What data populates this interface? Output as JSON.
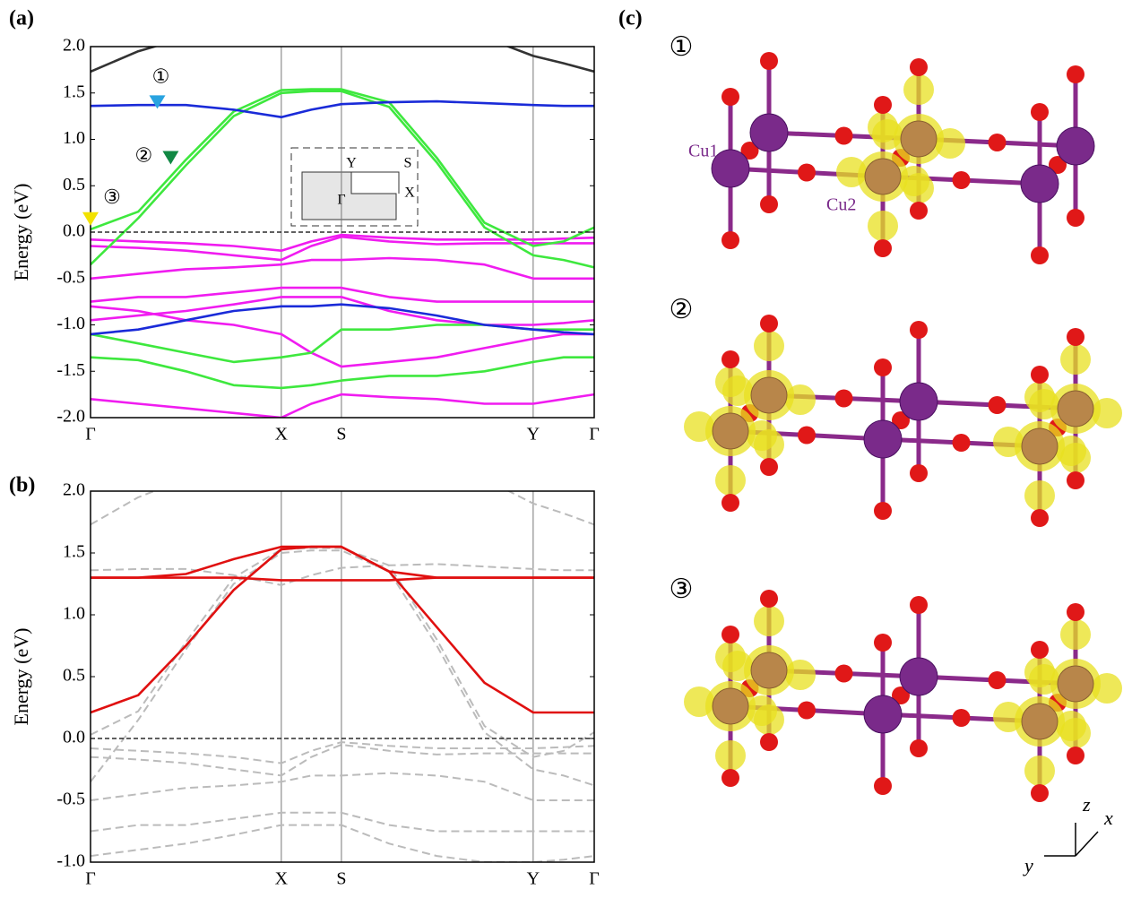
{
  "chart_data": [
    {
      "type": "line",
      "panel_label": "(a)",
      "ylabel": "Energy (eV)",
      "x": [
        0,
        0.25,
        0.5,
        0.75,
        1,
        1.157,
        1.315,
        1.565,
        1.815,
        2.065,
        2.32,
        2.48,
        2.64
      ],
      "xlim": [
        0,
        2.64
      ],
      "xticks": [
        {
          "value": 0,
          "label": "Γ"
        },
        {
          "value": 1,
          "label": "X"
        },
        {
          "value": 1.315,
          "label": "S"
        },
        {
          "value": 2.32,
          "label": "Y"
        },
        {
          "value": 2.64,
          "label": "Γ"
        }
      ],
      "ylim": [
        -2,
        2
      ],
      "yticks": [
        {
          "value": -2,
          "label": "-2.0"
        },
        -1.5,
        {
          "value": -1,
          "label": "-1.0"
        },
        -0.5,
        {
          "value": 0,
          "label": "0.0"
        },
        0.5,
        {
          "value": 1,
          "label": "1.0"
        },
        1.5,
        {
          "value": 2,
          "label": "2.0"
        }
      ],
      "zero_line": 0,
      "series": [
        {
          "color": "#333333",
          "values": [
            1.73,
            1.95,
            2.1,
            null,
            null,
            null,
            null,
            null,
            null,
            2.1,
            1.9,
            1.82,
            1.73
          ]
        },
        {
          "color": "#f01cf0",
          "values": [
            -0.08,
            -0.1,
            -0.12,
            -0.15,
            -0.2,
            -0.1,
            -0.03,
            -0.06,
            -0.08,
            -0.08,
            -0.08,
            -0.07,
            -0.06
          ]
        },
        {
          "color": "#f01cf0",
          "values": [
            -0.15,
            -0.17,
            -0.2,
            -0.25,
            -0.3,
            -0.15,
            -0.05,
            -0.1,
            -0.13,
            -0.12,
            -0.12,
            -0.12,
            -0.12
          ]
        },
        {
          "color": "#f01cf0",
          "values": [
            -0.5,
            -0.45,
            -0.4,
            -0.38,
            -0.35,
            -0.3,
            -0.3,
            -0.28,
            -0.3,
            -0.35,
            -0.5,
            -0.5,
            -0.5
          ]
        },
        {
          "color": "#f01cf0",
          "values": [
            -0.75,
            -0.7,
            -0.7,
            -0.65,
            -0.6,
            -0.6,
            -0.6,
            -0.7,
            -0.75,
            -0.75,
            -0.75,
            -0.75,
            -0.75
          ]
        },
        {
          "color": "#f01cf0",
          "values": [
            -0.95,
            -0.9,
            -0.85,
            -0.78,
            -0.7,
            -0.7,
            -0.7,
            -0.85,
            -0.95,
            -1.0,
            -1.0,
            -0.98,
            -0.95
          ]
        },
        {
          "color": "#f01cf0",
          "values": [
            -0.8,
            -0.85,
            -0.95,
            -1.0,
            -1.1,
            -1.3,
            -1.45,
            -1.4,
            -1.35,
            -1.25,
            -1.15,
            -1.1,
            -1.1
          ]
        },
        {
          "color": "#f01cf0",
          "values": [
            -1.8,
            -1.85,
            -1.9,
            -1.95,
            -2.0,
            -1.85,
            -1.75,
            -1.78,
            -1.8,
            -1.85,
            -1.85,
            -1.8,
            -1.75
          ]
        },
        {
          "color": "#3ee83e",
          "values": [
            -1.35,
            -1.38,
            -1.5,
            -1.65,
            -1.68,
            -1.65,
            -1.6,
            -1.55,
            -1.55,
            -1.5,
            -1.4,
            -1.35,
            -1.35
          ]
        },
        {
          "color": "#3ee83e",
          "values": [
            -1.1,
            -1.2,
            -1.3,
            -1.4,
            -1.35,
            -1.3,
            -1.05,
            -1.05,
            -1.0,
            -1.0,
            -1.05,
            -1.05,
            -1.05
          ]
        },
        {
          "color": "#1a2bd8",
          "values": [
            -1.1,
            -1.05,
            -0.95,
            -0.85,
            -0.8,
            -0.8,
            -0.78,
            -0.82,
            -0.9,
            -1.0,
            -1.05,
            -1.08,
            -1.1
          ]
        },
        {
          "color": "#3ee83e",
          "values": [
            0.03,
            0.22,
            0.78,
            1.3,
            1.53,
            1.54,
            1.54,
            1.4,
            0.8,
            0.1,
            -0.15,
            -0.1,
            0.05
          ]
        },
        {
          "color": "#3ee83e",
          "values": [
            -0.35,
            0.15,
            0.72,
            1.25,
            1.5,
            1.52,
            1.52,
            1.35,
            0.75,
            0.05,
            -0.25,
            -0.3,
            -0.38
          ]
        },
        {
          "color": "#1a2bd8",
          "values": [
            1.36,
            1.37,
            1.37,
            1.32,
            1.24,
            1.32,
            1.38,
            1.4,
            1.41,
            1.39,
            1.37,
            1.36,
            1.36
          ]
        }
      ],
      "annotations": [
        {
          "text": "①",
          "x": 0.35,
          "y": 1.33,
          "color": "#29a3e0"
        },
        {
          "text": "②",
          "x": 0.42,
          "y": 0.73,
          "color": "#118844"
        },
        {
          "text": "③",
          "x": 0,
          "y": 0.07,
          "color": "#f2e200"
        }
      ],
      "inset_labels": [
        "Y",
        "S",
        "X",
        "Γ"
      ]
    },
    {
      "type": "line",
      "panel_label": "(b)",
      "ylabel": "Energy (eV)",
      "x": [
        0,
        0.25,
        0.5,
        0.75,
        1,
        1.157,
        1.315,
        1.565,
        1.815,
        2.065,
        2.32,
        2.48,
        2.64
      ],
      "xlim": [
        0,
        2.64
      ],
      "xticks": [
        {
          "value": 0,
          "label": "Γ"
        },
        {
          "value": 1,
          "label": "X"
        },
        {
          "value": 1.315,
          "label": "S"
        },
        {
          "value": 2.32,
          "label": "Y"
        },
        {
          "value": 2.64,
          "label": "Γ"
        }
      ],
      "ylim": [
        -1,
        2
      ],
      "yticks": [
        {
          "value": -1,
          "label": "-1.0"
        },
        -0.5,
        {
          "value": 0,
          "label": "0.0"
        },
        0.5,
        {
          "value": 1,
          "label": "1.0"
        },
        1.5,
        {
          "value": 2,
          "label": "2.0"
        }
      ],
      "zero_line": 0,
      "series": [
        {
          "color": "#bbbbbb",
          "dashed": true,
          "values": [
            1.73,
            1.95,
            2.1,
            null,
            null,
            null,
            null,
            null,
            null,
            2.1,
            1.9,
            1.82,
            1.73
          ]
        },
        {
          "color": "#bbbbbb",
          "dashed": true,
          "values": [
            -0.08,
            -0.1,
            -0.12,
            -0.15,
            -0.2,
            -0.1,
            -0.03,
            -0.06,
            -0.08,
            -0.08,
            -0.08,
            -0.07,
            -0.06
          ]
        },
        {
          "color": "#bbbbbb",
          "dashed": true,
          "values": [
            -0.15,
            -0.17,
            -0.2,
            -0.25,
            -0.3,
            -0.15,
            -0.05,
            -0.1,
            -0.13,
            -0.12,
            -0.12,
            -0.12,
            -0.12
          ]
        },
        {
          "color": "#bbbbbb",
          "dashed": true,
          "values": [
            -0.5,
            -0.45,
            -0.4,
            -0.38,
            -0.35,
            -0.3,
            -0.3,
            -0.28,
            -0.3,
            -0.35,
            -0.5,
            -0.5,
            -0.5
          ]
        },
        {
          "color": "#bbbbbb",
          "dashed": true,
          "values": [
            -0.75,
            -0.7,
            -0.7,
            -0.65,
            -0.6,
            -0.6,
            -0.6,
            -0.7,
            -0.75,
            -0.75,
            -0.75,
            -0.75,
            -0.75
          ]
        },
        {
          "color": "#bbbbbb",
          "dashed": true,
          "values": [
            -0.95,
            -0.9,
            -0.85,
            -0.78,
            -0.7,
            -0.7,
            -0.7,
            -0.85,
            -0.95,
            -1.0,
            -1.0,
            -0.98,
            -0.95
          ]
        },
        {
          "color": "#bbbbbb",
          "dashed": true,
          "values": [
            0.03,
            0.22,
            0.78,
            1.3,
            1.53,
            1.54,
            1.54,
            1.4,
            0.8,
            0.1,
            -0.15,
            -0.1,
            0.05
          ]
        },
        {
          "color": "#bbbbbb",
          "dashed": true,
          "values": [
            -0.35,
            0.15,
            0.72,
            1.25,
            1.5,
            1.52,
            1.52,
            1.35,
            0.75,
            0.05,
            -0.25,
            -0.3,
            -0.38
          ]
        },
        {
          "color": "#bbbbbb",
          "dashed": true,
          "values": [
            1.36,
            1.37,
            1.37,
            1.32,
            1.24,
            1.32,
            1.38,
            1.4,
            1.41,
            1.39,
            1.37,
            1.36,
            1.36
          ]
        },
        {
          "color": "#e01010",
          "values": [
            0.21,
            0.35,
            0.75,
            1.2,
            1.53,
            1.55,
            1.55,
            1.35,
            0.9,
            0.45,
            0.21,
            0.21,
            0.21
          ]
        },
        {
          "color": "#e01010",
          "values": [
            1.3,
            1.3,
            1.33,
            1.45,
            1.55,
            1.55,
            1.55,
            1.35,
            1.3,
            1.3,
            1.3,
            1.3,
            1.3
          ]
        },
        {
          "color": "#e01010",
          "values": [
            1.3,
            1.3,
            1.3,
            1.3,
            1.28,
            1.28,
            1.28,
            1.28,
            1.3,
            1.3,
            1.3,
            1.3,
            1.3
          ]
        }
      ]
    }
  ],
  "panel_c": {
    "label": "(c)",
    "states": [
      "①",
      "②",
      "③"
    ],
    "atom_labels": [
      "Cu1",
      "Cu2"
    ],
    "axes": [
      "z",
      "x",
      "y"
    ]
  }
}
